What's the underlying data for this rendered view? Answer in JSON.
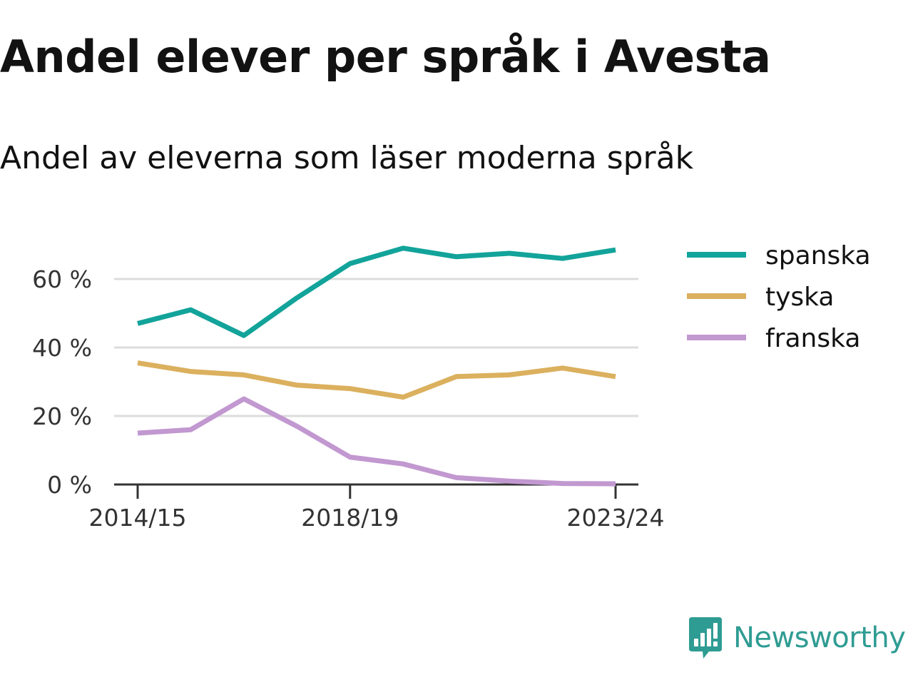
{
  "title": "Andel elever per språk i Avesta",
  "subtitle": "Andel av eleverna som läser moderna språk",
  "brand": {
    "name": "Newsworthy",
    "icon": "newsworthy-logo-icon",
    "color": "#2f9c93"
  },
  "chart_data": {
    "type": "line",
    "x": [
      "2014/15",
      "2015/16",
      "2016/17",
      "2017/18",
      "2018/19",
      "2019/20",
      "2020/21",
      "2021/22",
      "2022/23",
      "2023/24"
    ],
    "x_tick_labels": [
      "2014/15",
      "2018/19",
      "2023/24"
    ],
    "y_ticks": [
      0,
      20,
      40,
      60
    ],
    "y_tick_labels": [
      "0 %",
      "20 %",
      "40 %",
      "60 %"
    ],
    "ylim": [
      0,
      70
    ],
    "grid": true,
    "legend": "right",
    "series": [
      {
        "name": "spanska",
        "color": "#12a39a",
        "values": [
          47,
          51,
          43.5,
          54.5,
          64.5,
          69,
          66.5,
          67.5,
          66,
          68.5
        ]
      },
      {
        "name": "tyska",
        "color": "#dbb05e",
        "values": [
          35.5,
          33,
          32,
          29,
          28,
          25.5,
          31.5,
          32,
          34,
          31.5
        ]
      },
      {
        "name": "franska",
        "color": "#c298d0",
        "values": [
          15,
          16,
          25,
          17,
          8,
          6,
          2,
          1,
          0.3,
          0.2
        ]
      }
    ]
  }
}
